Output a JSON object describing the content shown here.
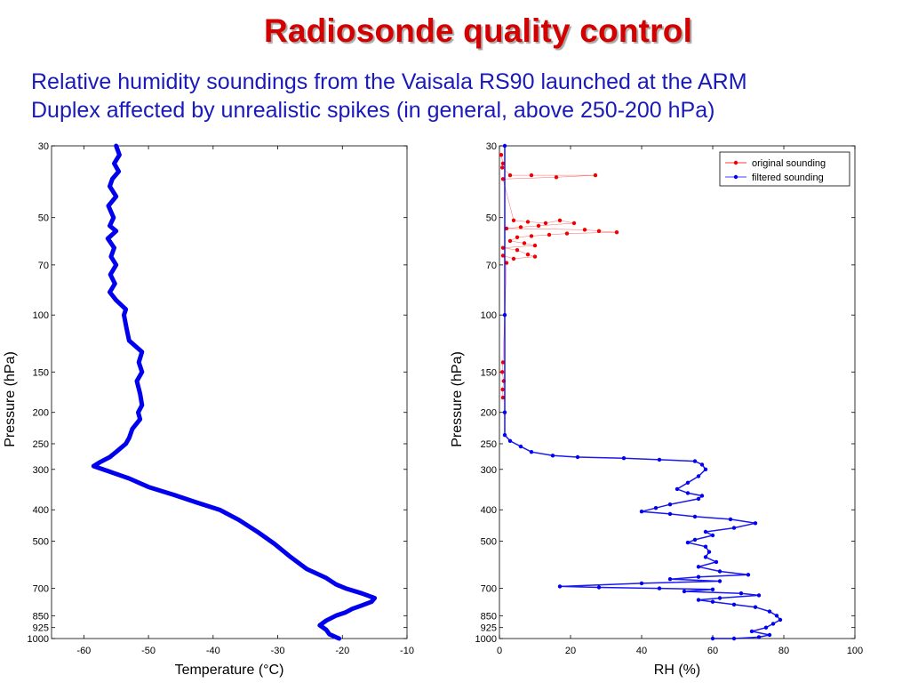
{
  "slide": {
    "title": "Radiosonde quality control",
    "subtitle_line1": "Relative humidity soundings from the Vaisala RS90 launched at the ARM",
    "subtitle_line2": "Duplex affected by unrealistic spikes (in general, above 250-200 hPa)"
  },
  "colors": {
    "title": "#d40000",
    "subtitle": "#1a1ab8",
    "filtered": "#0000ee",
    "original": "#ee0000"
  },
  "chart_data": [
    {
      "type": "line",
      "xlabel": "Temperature (°C)",
      "ylabel": "Pressure (hPa)",
      "xlim": [
        -65,
        -10
      ],
      "ylim": [
        30,
        1000
      ],
      "yscale": "log",
      "y_reversed": true,
      "xticks": [
        -60,
        -50,
        -40,
        -30,
        -20,
        -10
      ],
      "yticks": [
        30,
        50,
        70,
        100,
        150,
        200,
        250,
        300,
        400,
        500,
        700,
        850,
        925,
        1000
      ],
      "series": [
        {
          "color": "#0000ee",
          "points": [
            [
              -55.0,
              30
            ],
            [
              -54.5,
              32
            ],
            [
              -55.3,
              34
            ],
            [
              -54.6,
              36
            ],
            [
              -55.6,
              38
            ],
            [
              -56.0,
              40
            ],
            [
              -55.0,
              43
            ],
            [
              -56.2,
              46
            ],
            [
              -55.4,
              50
            ],
            [
              -56.0,
              53
            ],
            [
              -55.0,
              55
            ],
            [
              -56.3,
              58
            ],
            [
              -55.3,
              62
            ],
            [
              -55.8,
              66
            ],
            [
              -55.0,
              70
            ],
            [
              -55.9,
              75
            ],
            [
              -55.2,
              80
            ],
            [
              -56.0,
              85
            ],
            [
              -55.0,
              90
            ],
            [
              -53.5,
              96
            ],
            [
              -53.8,
              100
            ],
            [
              -53.4,
              110
            ],
            [
              -53.0,
              120
            ],
            [
              -51.0,
              130
            ],
            [
              -51.5,
              140
            ],
            [
              -51.0,
              150
            ],
            [
              -51.8,
              160
            ],
            [
              -51.3,
              175
            ],
            [
              -51.0,
              190
            ],
            [
              -51.6,
              200
            ],
            [
              -51.3,
              210
            ],
            [
              -52.5,
              225
            ],
            [
              -53.0,
              240
            ],
            [
              -53.5,
              250
            ],
            [
              -55.0,
              265
            ],
            [
              -56.0,
              275
            ],
            [
              -57.5,
              285
            ],
            [
              -58.5,
              293
            ],
            [
              -56.0,
              305
            ],
            [
              -53.0,
              320
            ],
            [
              -50.0,
              340
            ],
            [
              -46.0,
              360
            ],
            [
              -42.5,
              380
            ],
            [
              -39.0,
              400
            ],
            [
              -36.0,
              430
            ],
            [
              -33.0,
              470
            ],
            [
              -30.5,
              510
            ],
            [
              -28.0,
              560
            ],
            [
              -25.5,
              610
            ],
            [
              -22.5,
              650
            ],
            [
              -21.0,
              680
            ],
            [
              -19.5,
              700
            ],
            [
              -17.0,
              725
            ],
            [
              -15.0,
              750
            ],
            [
              -15.5,
              770
            ],
            [
              -17.0,
              790
            ],
            [
              -18.5,
              810
            ],
            [
              -19.5,
              830
            ],
            [
              -21.0,
              850
            ],
            [
              -22.5,
              880
            ],
            [
              -23.5,
              910
            ],
            [
              -22.5,
              940
            ],
            [
              -22.0,
              970
            ],
            [
              -20.5,
              1000
            ]
          ]
        }
      ]
    },
    {
      "type": "scatter",
      "xlabel": "RH (%)",
      "ylabel": "Pressure (hPa)",
      "xlim": [
        0,
        100
      ],
      "ylim": [
        30,
        1000
      ],
      "yscale": "log",
      "y_reversed": true,
      "xticks": [
        0,
        20,
        40,
        60,
        80,
        100
      ],
      "yticks": [
        30,
        50,
        70,
        100,
        150,
        200,
        250,
        300,
        400,
        500,
        700,
        850,
        925,
        1000
      ],
      "legend": {
        "placement": "top-right"
      },
      "series": [
        {
          "name": "original sounding",
          "color": "#ee0000",
          "points": [
            [
              0.5,
              32
            ],
            [
              1.0,
              34
            ],
            [
              0.8,
              35
            ],
            [
              3.0,
              37
            ],
            [
              9.0,
              37
            ],
            [
              27.0,
              37
            ],
            [
              16.0,
              37.5
            ],
            [
              1.0,
              38
            ],
            [
              4.0,
              51
            ],
            [
              8.0,
              51.5
            ],
            [
              13.0,
              52
            ],
            [
              17.0,
              51
            ],
            [
              21.0,
              52
            ],
            [
              11.0,
              53
            ],
            [
              6.0,
              53.5
            ],
            [
              2.0,
              54
            ],
            [
              24.0,
              54.5
            ],
            [
              28.0,
              55
            ],
            [
              33.0,
              55.5
            ],
            [
              19.0,
              56
            ],
            [
              14.0,
              56.5
            ],
            [
              9.0,
              57
            ],
            [
              5.0,
              57.5
            ],
            [
              3.0,
              59
            ],
            [
              7.0,
              60
            ],
            [
              10.0,
              61
            ],
            [
              1.0,
              62
            ],
            [
              5.0,
              63
            ],
            [
              8.0,
              65
            ],
            [
              10.0,
              66
            ],
            [
              4.0,
              67
            ],
            [
              1.0,
              65.5
            ],
            [
              2.0,
              69
            ],
            [
              1.0,
              140
            ],
            [
              0.8,
              150
            ],
            [
              1.2,
              160
            ],
            [
              0.9,
              170
            ],
            [
              1.0,
              180
            ]
          ]
        },
        {
          "name": "filtered sounding",
          "color": "#0000ee",
          "points": [
            [
              1.5,
              30
            ],
            [
              1.5,
              100
            ],
            [
              1.5,
              200
            ],
            [
              1.5,
              235
            ],
            [
              3.0,
              245
            ],
            [
              6.0,
              255
            ],
            [
              9.0,
              265
            ],
            [
              15.0,
              272
            ],
            [
              22.0,
              275
            ],
            [
              35.0,
              277
            ],
            [
              45.0,
              280
            ],
            [
              55.0,
              283
            ],
            [
              57.0,
              290
            ],
            [
              58.0,
              300
            ],
            [
              56.0,
              315
            ],
            [
              53.0,
              330
            ],
            [
              50.0,
              345
            ],
            [
              53.0,
              355
            ],
            [
              57.0,
              362
            ],
            [
              56.0,
              370
            ],
            [
              48.0,
              385
            ],
            [
              44.0,
              395
            ],
            [
              40.0,
              405
            ],
            [
              48.0,
              412
            ],
            [
              55.0,
              420
            ],
            [
              65.0,
              428
            ],
            [
              72.0,
              440
            ],
            [
              66.0,
              455
            ],
            [
              58.0,
              468
            ],
            [
              60.0,
              480
            ],
            [
              55.0,
              495
            ],
            [
              53.0,
              505
            ],
            [
              58.0,
              520
            ],
            [
              59.0,
              540
            ],
            [
              58.0,
              560
            ],
            [
              61.0,
              580
            ],
            [
              56.0,
              600
            ],
            [
              62.0,
              620
            ],
            [
              70.0,
              635
            ],
            [
              56.0,
              645
            ],
            [
              48.0,
              655
            ],
            [
              62.0,
              665
            ],
            [
              40.0,
              675
            ],
            [
              17.0,
              690
            ],
            [
              28.0,
              695
            ],
            [
              45.0,
              700
            ],
            [
              60.0,
              705
            ],
            [
              52.0,
              715
            ],
            [
              68.0,
              725
            ],
            [
              73.0,
              735
            ],
            [
              62.0,
              750
            ],
            [
              56.0,
              760
            ],
            [
              60.0,
              770
            ],
            [
              66.0,
              785
            ],
            [
              72.0,
              800
            ],
            [
              76.0,
              825
            ],
            [
              78.0,
              850
            ],
            [
              79.0,
              875
            ],
            [
              77.0,
              900
            ],
            [
              75.0,
              925
            ],
            [
              71.0,
              950
            ],
            [
              76.0,
              975
            ],
            [
              73.0,
              990
            ],
            [
              66.0,
              1000
            ],
            [
              60.0,
              1000
            ]
          ]
        }
      ]
    }
  ]
}
